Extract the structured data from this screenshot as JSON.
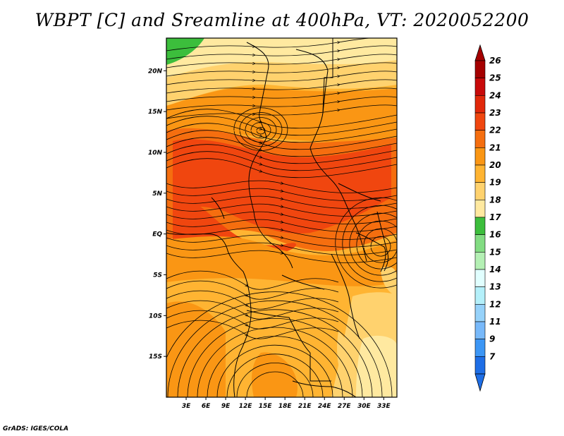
{
  "title": "WBPT [C] and Sreamline at 400hPa, VT: 2020052200",
  "footer": "GrADS: IGES/COLA",
  "map": {
    "lat_ticks": [
      {
        "lat": 20,
        "label": "20N"
      },
      {
        "lat": 15,
        "label": "15N"
      },
      {
        "lat": 10,
        "label": "10N"
      },
      {
        "lat": 5,
        "label": "5N"
      },
      {
        "lat": 0,
        "label": "EQ"
      },
      {
        "lat": -5,
        "label": "5S"
      },
      {
        "lat": -10,
        "label": "10S"
      },
      {
        "lat": -15,
        "label": "15S"
      }
    ],
    "lon_ticks": [
      {
        "lon": 3,
        "label": "3E"
      },
      {
        "lon": 6,
        "label": "6E"
      },
      {
        "lon": 9,
        "label": "9E"
      },
      {
        "lon": 12,
        "label": "12E"
      },
      {
        "lon": 15,
        "label": "15E"
      },
      {
        "lon": 18,
        "label": "18E"
      },
      {
        "lon": 21,
        "label": "21E"
      },
      {
        "lon": 24,
        "label": "24E"
      },
      {
        "lon": 27,
        "label": "27E"
      },
      {
        "lon": 30,
        "label": "30E"
      },
      {
        "lon": 33,
        "label": "33E"
      }
    ],
    "lon_range": [
      0,
      35
    ],
    "lat_range": [
      -20,
      24
    ]
  },
  "colorbar": {
    "levels": [
      {
        "label": "26",
        "color": "#a50000"
      },
      {
        "label": "25",
        "color": "#c80a0a"
      },
      {
        "label": "24",
        "color": "#e1280a"
      },
      {
        "label": "23",
        "color": "#f0460f"
      },
      {
        "label": "22",
        "color": "#f56e0f"
      },
      {
        "label": "21",
        "color": "#fa9614"
      },
      {
        "label": "20",
        "color": "#ffb432"
      },
      {
        "label": "19",
        "color": "#ffd26e"
      },
      {
        "label": "18",
        "color": "#ffe9a0"
      },
      {
        "label": "17",
        "color": "#3cbe3c"
      },
      {
        "label": "16",
        "color": "#82dc82"
      },
      {
        "label": "15",
        "color": "#b4f0b4"
      },
      {
        "label": "14",
        "color": "#e1ffff"
      },
      {
        "label": "13",
        "color": "#b4f0fa"
      },
      {
        "label": "12",
        "color": "#96d2fa"
      },
      {
        "label": "11",
        "color": "#78b9fa"
      },
      {
        "label": "9",
        "color": "#3c96f5"
      },
      {
        "label": "7",
        "color": "#1e6ee6"
      }
    ],
    "top_arrow_color": "#a50000",
    "bottom_arrow_color": "#1e6ee6"
  }
}
